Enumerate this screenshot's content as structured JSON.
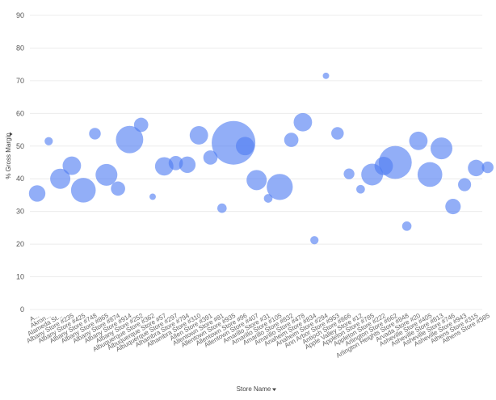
{
  "chart_data": {
    "type": "scatter",
    "xlabel": "Store Name",
    "ylabel": "% Gross Margin",
    "ylim": [
      0,
      90
    ],
    "yticks": [
      0,
      10,
      20,
      30,
      40,
      50,
      60,
      70,
      80,
      90
    ],
    "grid": true,
    "bubble_color": "#4f7cf2",
    "x": [
      "A...",
      "Akron...",
      "Alameda St...",
      "Albany Store #235",
      "Albany Store #425",
      "Albany Store #748",
      "Albany Store #865",
      "Albany Store #874",
      "Albany Store #914",
      "Albany Store #252",
      "Albuquerque Store #362",
      "Albuquerque Store #57",
      "Albuquerque Store #297",
      "Alhambra Store #794",
      "Alhambra Store #310",
      "Allen Store #391",
      "Allentown Store #81",
      "Allentown Store #935",
      "Allentown Store #96",
      "Allentown Store #407",
      "Amarillo Store #31",
      "Amarillo Store #105",
      "Amarillo Store #832",
      "Amarillo Store #478",
      "Anaheim Store #834",
      "Anaheim Store #294",
      "Ann Arbor Store #953",
      "Antioch Store #866",
      "Apple Valley Store #12",
      "Appleton Store #785",
      "Appleton Store #222",
      "Arlington Store #662",
      "Arlington Heights Store #848",
      "Arvada Store #20",
      "Asheville Store #405",
      "Asheville Store #813",
      "Asheville Store #746",
      "Asheville Store #943",
      "Athens Store #315",
      "Athens Store #585"
    ],
    "points": [
      {
        "x": "A...",
        "y": 35.5,
        "size": 4
      },
      {
        "x": "Akron...",
        "y": 51.5,
        "size": 1
      },
      {
        "x": "Alameda St...",
        "y": 40,
        "size": 6
      },
      {
        "x": "Albany Store #235",
        "y": 44,
        "size": 5
      },
      {
        "x": "Albany Store #425",
        "y": 36.5,
        "size": 9
      },
      {
        "x": "Albany Store #748",
        "y": 53.8,
        "size": 2
      },
      {
        "x": "Albany Store #865",
        "y": 41.2,
        "size": 7
      },
      {
        "x": "Albany Store #874",
        "y": 37,
        "size": 3
      },
      {
        "x": "Albany Store #914",
        "y": 52,
        "size": 11
      },
      {
        "x": "Albany Store #252",
        "y": 56.5,
        "size": 3
      },
      {
        "x": "Albuquerque Store #362",
        "y": 34.5,
        "size": 0.6
      },
      {
        "x": "Albuquerque Store #57",
        "y": 43.8,
        "size": 5
      },
      {
        "x": "Albuquerque Store #297",
        "y": 44.8,
        "size": 3
      },
      {
        "x": "Alhambra Store #794",
        "y": 44.3,
        "size": 4
      },
      {
        "x": "Alhambra Store #310",
        "y": 53.3,
        "size": 5
      },
      {
        "x": "Allen Store #391",
        "y": 46.5,
        "size": 3
      },
      {
        "x": "Allentown Store #81",
        "y": 31,
        "size": 1.3
      },
      {
        "x": "Allentown Store #935",
        "y": 51,
        "size": 28
      },
      {
        "x": "Allentown Store #96",
        "y": 50,
        "size": 5
      },
      {
        "x": "Allentown Store #407",
        "y": 39.6,
        "size": 6
      },
      {
        "x": "Amarillo Store #31",
        "y": 34,
        "size": 1.1
      },
      {
        "x": "Amarillo Store #105",
        "y": 37.5,
        "size": 10
      },
      {
        "x": "Amarillo Store #832",
        "y": 51.9,
        "size": 3
      },
      {
        "x": "Amarillo Store #478",
        "y": 57.3,
        "size": 5
      },
      {
        "x": "Anaheim Store #834",
        "y": 21.2,
        "size": 1
      },
      {
        "x": "Anaheim Store #294",
        "y": 71.5,
        "size": 0.6
      },
      {
        "x": "Ann Arbor Store #953",
        "y": 53.9,
        "size": 2.3
      },
      {
        "x": "Antioch Store #866",
        "y": 41.5,
        "size": 1.7
      },
      {
        "x": "Apple Valley Store #12",
        "y": 36.8,
        "size": 1.1
      },
      {
        "x": "Appleton Store #785",
        "y": 41.3,
        "size": 7
      },
      {
        "x": "Appleton Store #222",
        "y": 43.9,
        "size": 5
      },
      {
        "x": "Arlington Store #662",
        "y": 45,
        "size": 16
      },
      {
        "x": "Arlington Heights Store #848",
        "y": 25.5,
        "size": 1.3
      },
      {
        "x": "Arvada Store #20",
        "y": 51.6,
        "size": 5
      },
      {
        "x": "Asheville Store #405",
        "y": 41.3,
        "size": 9
      },
      {
        "x": "Asheville Store #813",
        "y": 49.3,
        "size": 7
      },
      {
        "x": "Asheville Store #746",
        "y": 31.5,
        "size": 3.5
      },
      {
        "x": "Asheville Store #943",
        "y": 38.2,
        "size": 2.5
      },
      {
        "x": "Athens Store #315",
        "y": 43.3,
        "size": 4
      },
      {
        "x": "Athens Store #585",
        "y": 43.5,
        "size": 2
      }
    ]
  },
  "icons": {
    "ylabel_dropdown": "caret-down-icon",
    "xlabel_dropdown": "caret-down-icon"
  }
}
